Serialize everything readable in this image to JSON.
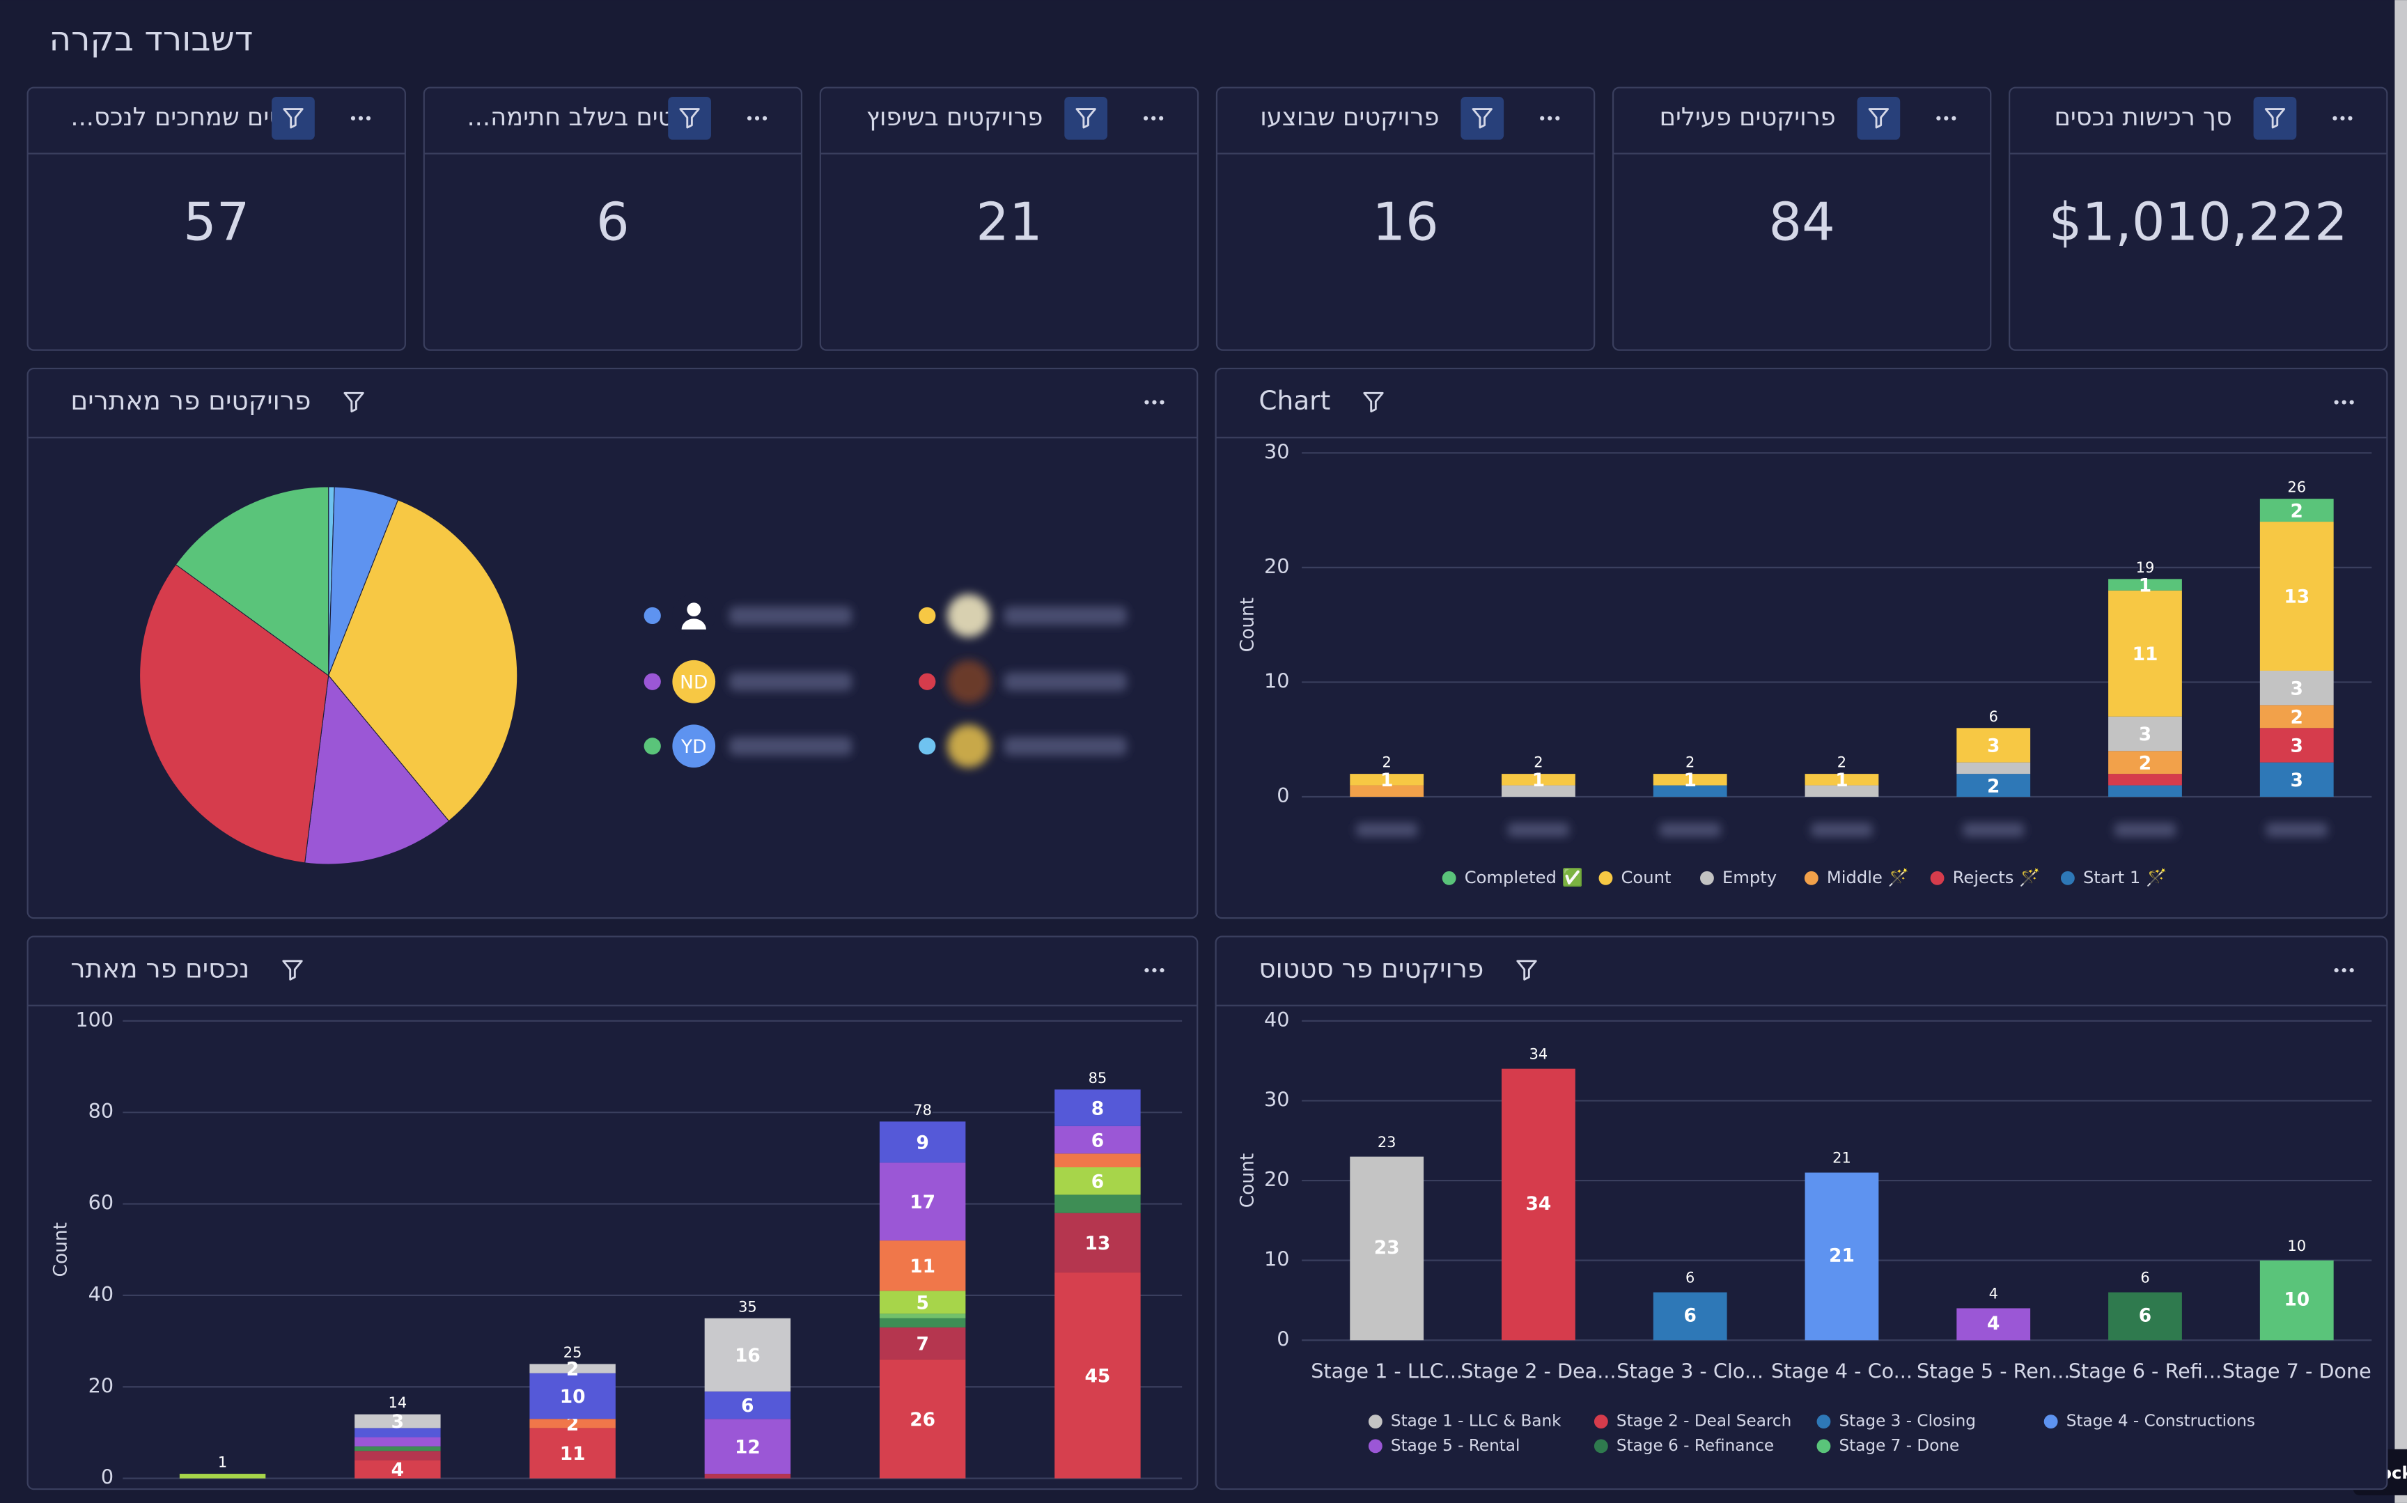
{
  "header": {
    "title": "דשבורד בקרה"
  },
  "kpis": [
    {
      "title": "סך רכישות נכסים",
      "value": {
        "value": 1010222,
        "label": "$1,010,222"
      }
    },
    {
      "title": "פרויקטים פעילים",
      "value": 84
    },
    {
      "title": "פרויקטים שבוצעו",
      "value": 16
    },
    {
      "title": "פרויקטים בשיפוץ",
      "value": 21
    },
    {
      "title": "...קטים בשלב חתימה",
      "value": 6
    },
    {
      "title": "...טים שמחכים לנכס",
      "value": 57
    }
  ],
  "chart_data": [
    {
      "type": "pie",
      "title": "פרויקטים פר מאתרים",
      "categories": [
        null,
        null,
        null,
        null,
        null,
        null
      ],
      "values": [
        0.5,
        5.5,
        33,
        13,
        33,
        15
      ],
      "colors": [
        "#6fc3f0",
        "#5e93f0",
        "#f7c844",
        "#9b57d6",
        "#d63c4c",
        "#5ac47a"
      ],
      "avatars": [
        null,
        null,
        null,
        "ND",
        null,
        "YD"
      ]
    },
    {
      "type": "stacked_bar",
      "title": "Chart",
      "y_label": "Count",
      "categories": [
        null,
        null,
        null,
        null,
        null,
        null,
        null
      ],
      "ylim": [
        0,
        30
      ],
      "yticks": [
        0,
        10,
        20,
        30
      ],
      "grid": true,
      "totals": [
        2,
        2,
        2,
        2,
        6,
        19,
        26
      ],
      "series": [
        {
          "name": "Start 1 🪄",
          "color": "#2e78b7",
          "values": [
            0,
            0,
            1,
            0,
            2,
            1,
            3
          ],
          "value_labels": [
            null,
            null,
            null,
            null,
            2,
            null,
            3
          ]
        },
        {
          "name": "Rejects 🪄",
          "color": "#d63c4c",
          "values": [
            0,
            0,
            0,
            0,
            0,
            1,
            3
          ],
          "value_labels": [
            null,
            null,
            null,
            null,
            null,
            null,
            3
          ]
        },
        {
          "name": "Middle 🪄",
          "color": "#f2a14a",
          "values": [
            1,
            0,
            0,
            0,
            0,
            2,
            2
          ],
          "value_labels": [
            null,
            null,
            null,
            null,
            null,
            2,
            2
          ]
        },
        {
          "name": "Empty",
          "color": "#c3c3c3",
          "values": [
            0,
            1,
            0,
            1,
            1,
            3,
            3
          ],
          "value_labels": [
            null,
            null,
            null,
            null,
            null,
            3,
            3
          ]
        },
        {
          "name": "Count",
          "color": "#f7c844",
          "values": [
            1,
            1,
            1,
            1,
            3,
            11,
            13
          ],
          "value_labels": [
            1,
            1,
            1,
            1,
            3,
            11,
            13
          ]
        },
        {
          "name": "Completed ✅",
          "color": "#5ac47a",
          "values": [
            0,
            0,
            0,
            0,
            0,
            1,
            2
          ],
          "value_labels": [
            null,
            null,
            null,
            null,
            null,
            1,
            2
          ]
        }
      ]
    },
    {
      "type": "stacked_bar",
      "title": "נכסים פר מאתר",
      "y_label": "Count",
      "categories": [
        null,
        null,
        null,
        null,
        null,
        null
      ],
      "ylim": [
        0,
        100
      ],
      "yticks": [
        0,
        20,
        40,
        60,
        80,
        100
      ],
      "grid": true,
      "totals": [
        1,
        14,
        25,
        35,
        78,
        85
      ],
      "series": [
        {
          "color": "#d6404e",
          "values": [
            0,
            4,
            11,
            0,
            26,
            45
          ],
          "value_labels": [
            null,
            4,
            11,
            null,
            26,
            45
          ]
        },
        {
          "color": "#b5364f",
          "values": [
            0,
            2,
            0,
            1,
            7,
            13
          ],
          "value_labels": [
            null,
            null,
            null,
            null,
            7,
            13
          ]
        },
        {
          "color": "#3e8e55",
          "values": [
            0,
            1,
            0,
            0,
            2,
            4
          ],
          "value_labels": [
            null,
            null,
            null,
            null,
            null,
            null
          ]
        },
        {
          "color": "#72c16b",
          "values": [
            0,
            0,
            0,
            0,
            1,
            0
          ],
          "value_labels": [
            null,
            null,
            null,
            null,
            null,
            null
          ]
        },
        {
          "color": "#a7d54a",
          "values": [
            1,
            0,
            0,
            0,
            5,
            6
          ],
          "value_labels": [
            null,
            null,
            null,
            null,
            5,
            6
          ]
        },
        {
          "color": "#f0774a",
          "values": [
            0,
            0,
            2,
            0,
            11,
            3
          ],
          "value_labels": [
            null,
            null,
            2,
            null,
            11,
            null
          ]
        },
        {
          "color": "#9b57d6",
          "values": [
            0,
            2,
            0,
            12,
            17,
            6
          ],
          "value_labels": [
            null,
            null,
            null,
            12,
            17,
            6
          ]
        },
        {
          "color": "#5559d8",
          "values": [
            0,
            2,
            10,
            6,
            9,
            8
          ],
          "value_labels": [
            null,
            null,
            10,
            6,
            9,
            8
          ]
        },
        {
          "color": "#c9c9cc",
          "values": [
            0,
            3,
            2,
            16,
            0,
            0
          ],
          "value_labels": [
            null,
            3,
            2,
            16,
            null,
            null
          ]
        }
      ]
    },
    {
      "type": "bar",
      "title": "פרויקטים פר סטטוס",
      "y_label": "Count",
      "categories": [
        "Stage 1 - LLC...",
        "Stage 2 - Dea...",
        "Stage 3 - Clo...",
        "Stage 4 - Co...",
        "Stage 5 - Ren...",
        "Stage 6 - Refi...",
        "Stage 7 - Done"
      ],
      "values": [
        23,
        34,
        6,
        21,
        4,
        6,
        10
      ],
      "colors": [
        "#c4c4c4",
        "#d63c4c",
        "#2e78b7",
        "#5e93f0",
        "#9b57d6",
        "#2f7a4e",
        "#5ac47a"
      ],
      "legend": [
        "Stage 1 - LLC & Bank",
        "Stage 2 - Deal Search",
        "Stage 3 - Closing",
        "Stage 4 - Constructions",
        "Stage 5 - Rental",
        "Stage 6 - Refinance",
        "Stage 7 - Done"
      ],
      "ylim": [
        0,
        40
      ],
      "yticks": [
        0,
        10,
        20,
        30,
        40
      ],
      "grid": true
    }
  ],
  "badge": "Rock"
}
